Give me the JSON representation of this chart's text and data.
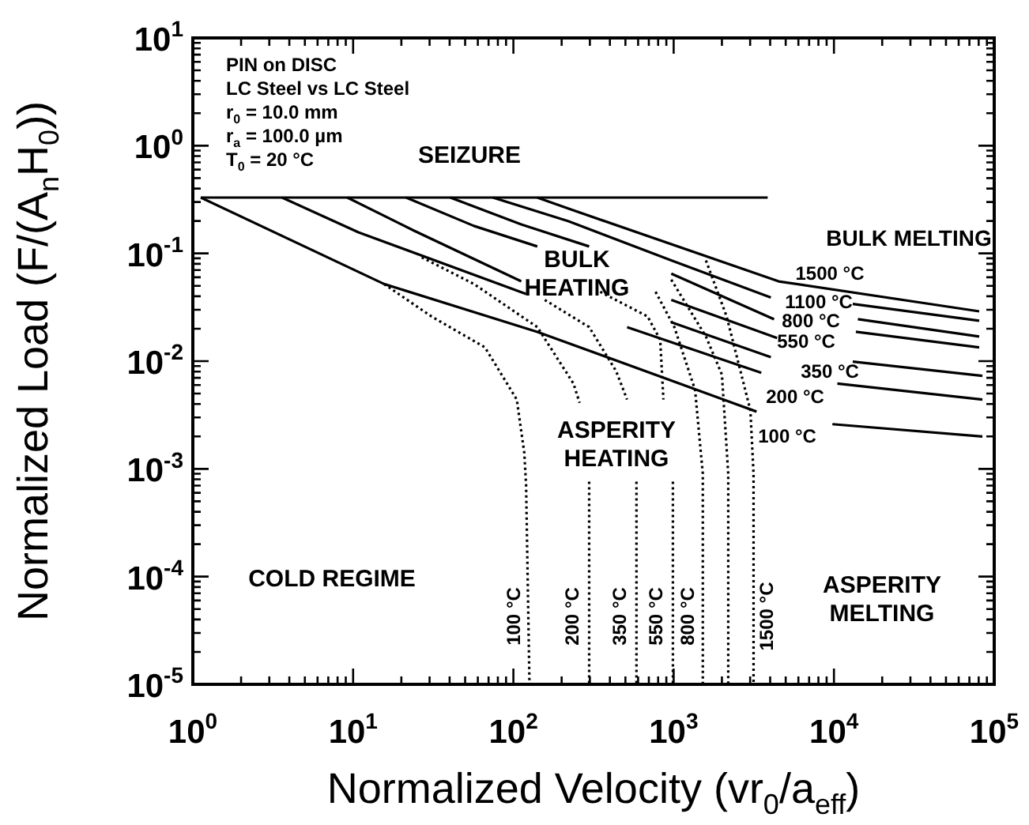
{
  "chart_data": {
    "type": "line",
    "xlabel": "Normalized Velocity (vr$_{0}$/a$_{eff}$)",
    "ylabel": "Normalized Load (F/(A$_{n}$H$_{0}$))",
    "log": "xy",
    "xlim": [
      1,
      100000
    ],
    "ylim": [
      1e-05,
      10
    ],
    "xticks": [
      {
        "value": 1,
        "label": "10$^{0}$"
      },
      {
        "value": 10,
        "label": "10$^{1}$"
      },
      {
        "value": 100,
        "label": "10$^{2}$"
      },
      {
        "value": 1000,
        "label": "10$^{3}$"
      },
      {
        "value": 10000,
        "label": "10$^{4}$"
      },
      {
        "value": 100000,
        "label": "10$^{5}$"
      }
    ],
    "yticks": [
      {
        "value": 1e-05,
        "label": "10$^{-5}$"
      },
      {
        "value": 0.0001,
        "label": "10$^{-4}$"
      },
      {
        "value": 0.001,
        "label": "10$^{-3}$"
      },
      {
        "value": 0.01,
        "label": "10$^{-2}$"
      },
      {
        "value": 0.1,
        "label": "10$^{-1}$"
      },
      {
        "value": 1,
        "label": "10$^{0}$"
      },
      {
        "value": 10,
        "label": "10$^{1}$"
      }
    ],
    "series": [
      {
        "type": "line",
        "color": "#000000",
        "line_style": "solid",
        "x": [
          1.12,
          3860
        ],
        "values": [
          0.33,
          0.33
        ]
      },
      {
        "type": "line",
        "color": "#000000",
        "line_style": "solid",
        "x": [
          1.12,
          15.6,
          141,
          3290
        ],
        "values": [
          0.33,
          0.052,
          0.0187,
          0.0034
        ]
      },
      {
        "type": "line",
        "color": "#000000",
        "line_style": "solid",
        "x": [
          9780,
          84400
        ],
        "values": [
          0.0026,
          0.002
        ]
      },
      {
        "type": "line",
        "color": "#000000",
        "line_style": "solid",
        "x": [
          3.6,
          10.8,
          120
        ],
        "values": [
          0.33,
          0.157,
          0.042
        ]
      },
      {
        "type": "line",
        "color": "#000000",
        "line_style": "solid",
        "x": [
          512,
          3520
        ],
        "values": [
          0.0207,
          0.0078
        ]
      },
      {
        "type": "line",
        "color": "#000000",
        "line_style": "solid",
        "x": [
          10500,
          84400
        ],
        "values": [
          0.0062,
          0.0044
        ]
      },
      {
        "type": "line",
        "color": "#000000",
        "line_style": "solid",
        "x": [
          9.2,
          23.9,
          112
        ],
        "values": [
          0.33,
          0.163,
          0.055
        ]
      },
      {
        "type": "line",
        "color": "#000000",
        "line_style": "solid",
        "x": [
          966,
          4040
        ],
        "values": [
          0.023,
          0.0109
        ]
      },
      {
        "type": "line",
        "color": "#000000",
        "line_style": "solid",
        "x": [
          13100,
          84400
        ],
        "values": [
          0.0099,
          0.0073
        ]
      },
      {
        "type": "line",
        "color": "#000000",
        "line_style": "solid",
        "x": [
          21.4,
          56.7,
          141
        ],
        "values": [
          0.33,
          0.18,
          0.116
        ]
      },
      {
        "type": "line",
        "color": "#000000",
        "line_style": "solid",
        "x": [
          966,
          4420
        ],
        "values": [
          0.037,
          0.0164
        ]
      },
      {
        "type": "line",
        "color": "#000000",
        "line_style": "solid",
        "x": [
          13700,
          80600
        ],
        "values": [
          0.0187,
          0.0134
        ]
      },
      {
        "type": "line",
        "color": "#000000",
        "line_style": "solid",
        "x": [
          40.4,
          112,
          297
        ],
        "values": [
          0.33,
          0.186,
          0.116
        ]
      },
      {
        "type": "line",
        "color": "#000000",
        "line_style": "solid",
        "x": [
          966,
          4230
        ],
        "values": [
          0.065,
          0.0245
        ]
      },
      {
        "type": "line",
        "color": "#000000",
        "line_style": "solid",
        "x": [
          14100,
          80600
        ],
        "values": [
          0.0245,
          0.0169
        ]
      },
      {
        "type": "line",
        "color": "#000000",
        "line_style": "solid",
        "x": [
          74.5,
          221,
          966,
          4040
        ],
        "values": [
          0.33,
          0.199,
          0.086,
          0.039
        ]
      },
      {
        "type": "line",
        "color": "#000000",
        "line_style": "solid",
        "x": [
          13100,
          80600
        ],
        "values": [
          0.034,
          0.0237
        ]
      },
      {
        "type": "line",
        "color": "#000000",
        "line_style": "solid",
        "x": [
          141,
          221,
          4520,
          80600
        ],
        "values": [
          0.33,
          0.26,
          0.055,
          0.029
        ]
      },
      {
        "type": "line",
        "color": "#000000",
        "line_style": "dotted",
        "x": [
          15.6,
          30.8,
          66.5,
          105,
          117,
          120,
          126
        ],
        "values": [
          0.052,
          0.026,
          0.0134,
          0.0044,
          0.0014,
          0.00071,
          1e-05
        ]
      },
      {
        "type": "line",
        "color": "#000000",
        "line_style": "dotted",
        "x": [
          26.8,
          56.7,
          141,
          237,
          259
        ],
        "values": [
          0.092,
          0.052,
          0.0207,
          0.0062,
          0.0041
        ]
      },
      {
        "type": "line",
        "color": "#000000",
        "line_style": "dotted",
        "x": [
          297,
          297
        ],
        "values": [
          0.00076,
          1e-05
        ]
      },
      {
        "type": "line",
        "color": "#000000",
        "line_style": "dotted",
        "x": [
          157,
          297,
          437,
          512
        ],
        "values": [
          0.037,
          0.0207,
          0.0081,
          0.0044
        ]
      },
      {
        "type": "line",
        "color": "#000000",
        "line_style": "dotted",
        "x": [
          586,
          586
        ],
        "values": [
          0.00076,
          1e-05
        ]
      },
      {
        "type": "line",
        "color": "#000000",
        "line_style": "dotted",
        "x": [
          348,
          687,
          824,
          863
        ],
        "values": [
          0.044,
          0.026,
          0.0158,
          0.0044
        ]
      },
      {
        "type": "line",
        "color": "#000000",
        "line_style": "dotted",
        "x": [
          989,
          989
        ],
        "values": [
          0.00076,
          1e-05
        ]
      },
      {
        "type": "line",
        "color": "#000000",
        "line_style": "dotted",
        "x": [
          771,
          1010,
          1360,
          1520,
          1520
        ],
        "values": [
          0.044,
          0.0207,
          0.0054,
          0.0009,
          1e-05
        ]
      },
      {
        "type": "line",
        "color": "#000000",
        "line_style": "dotted",
        "x": [
          966,
          1590,
          2000,
          2190,
          2190
        ],
        "values": [
          0.057,
          0.0169,
          0.0075,
          0.0009,
          1e-05
        ]
      },
      {
        "type": "line",
        "color": "#000000",
        "line_style": "dotted",
        "x": [
          1590,
          2140,
          3010,
          3150,
          3150
        ],
        "values": [
          0.086,
          0.026,
          0.0035,
          0.0009,
          1e-05
        ]
      }
    ],
    "annotations": [
      "PIN on DISC",
      "LC Steel vs LC Steel",
      "r$_{0}$ = 10.0 mm",
      "r$_{a}$ = 100.0 µm",
      "T$_{0}$ = 20 °C",
      "SEIZURE",
      "BULK MELTING",
      "BULK HEATING",
      "ASPERITY HEATING",
      "COLD REGIME",
      "ASPERITY MELTING",
      "1500 °C",
      "1100 °C",
      "800 °C",
      "550 °C",
      "350 °C",
      "200 °C",
      "100 °C",
      "100 °C",
      "200 °C",
      "350 °C",
      "550 °C",
      "800 °C",
      "1500 °C"
    ]
  }
}
